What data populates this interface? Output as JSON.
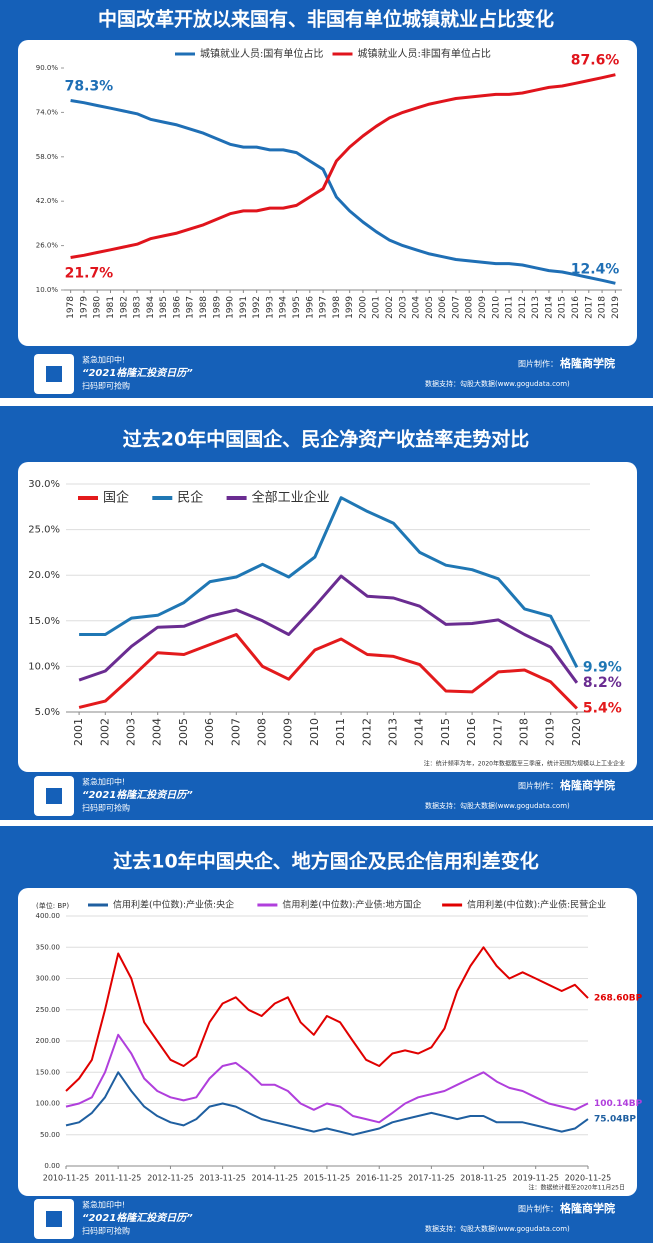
{
  "chart_data": [
    {
      "type": "line",
      "title": "中国改革开放以来国有、非国有单位城镇就业占比变化",
      "categories": [
        "1978",
        "1979",
        "1980",
        "1981",
        "1982",
        "1983",
        "1984",
        "1985",
        "1986",
        "1987",
        "1988",
        "1989",
        "1990",
        "1991",
        "1992",
        "1993",
        "1994",
        "1995",
        "1996",
        "1997",
        "1998",
        "1999",
        "2000",
        "2001",
        "2002",
        "2003",
        "2004",
        "2005",
        "2006",
        "2007",
        "2008",
        "2009",
        "2010",
        "2011",
        "2012",
        "2013",
        "2014",
        "2015",
        "2016",
        "2017",
        "2018",
        "2019"
      ],
      "series": [
        {
          "name": "城镇就业人员:国有单位占比",
          "color": "#1f6fb5",
          "values": [
            78.3,
            77.5,
            76.5,
            75.5,
            74.5,
            73.5,
            71.5,
            70.5,
            69.5,
            68,
            66.5,
            64.5,
            62.5,
            61.5,
            61.5,
            60.5,
            60.5,
            59.5,
            56.5,
            53.5,
            43.5,
            38.5,
            34.5,
            31,
            28,
            26,
            24.5,
            23,
            22,
            21,
            20.5,
            20,
            19.5,
            19.5,
            19,
            18,
            17,
            16.5,
            15.5,
            14.5,
            13.5,
            12.4
          ],
          "value_labels": [
            "78.3%",
            null,
            null,
            null,
            null,
            null,
            null,
            null,
            null,
            null,
            null,
            null,
            null,
            null,
            null,
            null,
            null,
            null,
            null,
            null,
            null,
            null,
            null,
            null,
            null,
            null,
            null,
            null,
            null,
            null,
            null,
            null,
            null,
            null,
            null,
            null,
            null,
            null,
            null,
            null,
            null,
            "12.4%"
          ]
        },
        {
          "name": "城镇就业人员:非国有单位占比",
          "color": "#e0141c",
          "values": [
            21.7,
            22.5,
            23.5,
            24.5,
            25.5,
            26.5,
            28.5,
            29.5,
            30.5,
            32,
            33.5,
            35.5,
            37.5,
            38.5,
            38.5,
            39.5,
            39.5,
            40.5,
            43.5,
            46.5,
            56.5,
            61.5,
            65.5,
            69,
            72,
            74,
            75.5,
            77,
            78,
            79,
            79.5,
            80,
            80.5,
            80.5,
            81,
            82,
            83,
            83.5,
            84.5,
            85.5,
            86.5,
            87.6
          ],
          "value_labels": [
            "21.7%",
            null,
            null,
            null,
            null,
            null,
            null,
            null,
            null,
            null,
            null,
            null,
            null,
            null,
            null,
            null,
            null,
            null,
            null,
            null,
            null,
            null,
            null,
            null,
            null,
            null,
            null,
            null,
            null,
            null,
            null,
            null,
            null,
            null,
            null,
            null,
            null,
            null,
            null,
            null,
            null,
            "87.6%"
          ]
        }
      ],
      "ylim": [
        10,
        90
      ],
      "yticks": [
        {
          "value": 10,
          "label": "10.0%"
        },
        {
          "value": 26,
          "label": "26.0%"
        },
        {
          "value": 42,
          "label": "42.0%"
        },
        {
          "value": 58,
          "label": "58.0%"
        },
        {
          "value": 74,
          "label": "74.0%"
        },
        {
          "value": 90,
          "label": "90.0%"
        }
      ],
      "grid": false
    },
    {
      "type": "line",
      "title": "过去20年中国国企、民企净资产收益率走势对比",
      "categories": [
        "2001",
        "2002",
        "2003",
        "2004",
        "2005",
        "2006",
        "2007",
        "2008",
        "2009",
        "2010",
        "2011",
        "2012",
        "2013",
        "2014",
        "2015",
        "2016",
        "2017",
        "2018",
        "2019",
        "2020"
      ],
      "series": [
        {
          "name": "国企",
          "color": "#e31a1c",
          "values": [
            5.5,
            6.2,
            8.8,
            11.5,
            11.3,
            12.4,
            13.5,
            10.0,
            8.6,
            11.8,
            13.0,
            11.3,
            11.1,
            10.2,
            7.3,
            7.2,
            9.4,
            9.6,
            8.3,
            5.4
          ],
          "value_labels": [
            null,
            null,
            null,
            null,
            null,
            null,
            null,
            null,
            null,
            null,
            null,
            null,
            null,
            null,
            null,
            null,
            null,
            null,
            null,
            "5.4%"
          ]
        },
        {
          "name": "民企",
          "color": "#1f77b4",
          "values": [
            13.5,
            13.5,
            15.3,
            15.6,
            17.0,
            19.3,
            19.8,
            21.2,
            19.8,
            22.0,
            28.5,
            27.0,
            25.7,
            22.5,
            21.1,
            20.6,
            19.6,
            16.3,
            15.5,
            9.9
          ],
          "value_labels": [
            null,
            null,
            null,
            null,
            null,
            null,
            null,
            null,
            null,
            null,
            null,
            null,
            null,
            null,
            null,
            null,
            null,
            null,
            null,
            "9.9%"
          ]
        },
        {
          "name": "全部工业企业",
          "color": "#6a2c91",
          "values": [
            8.5,
            9.5,
            12.2,
            14.3,
            14.4,
            15.5,
            16.2,
            15.0,
            13.5,
            16.6,
            19.9,
            17.7,
            17.5,
            16.6,
            14.6,
            14.7,
            15.1,
            13.5,
            12.1,
            8.2
          ],
          "value_labels": [
            null,
            null,
            null,
            null,
            null,
            null,
            null,
            null,
            null,
            null,
            null,
            null,
            null,
            null,
            null,
            null,
            null,
            null,
            null,
            "8.2%"
          ]
        }
      ],
      "ylim": [
        5,
        30
      ],
      "yticks": [
        {
          "value": 5,
          "label": "5.0%"
        },
        {
          "value": 10,
          "label": "10.0%"
        },
        {
          "value": 15,
          "label": "15.0%"
        },
        {
          "value": 20,
          "label": "20.0%"
        },
        {
          "value": 25,
          "label": "25.0%"
        },
        {
          "value": 30,
          "label": "30.0%"
        }
      ],
      "grid": true,
      "note": "注：统计频率为年，2020年数据截至三季度，统计范围为规模以上工业企业"
    },
    {
      "type": "line",
      "title": "过去10年中国央企、地方国企及民企信用利差变化",
      "y_label": "(单位: BP)",
      "x": [
        "2010-11-25",
        "2011-02-25",
        "2011-05-25",
        "2011-08-25",
        "2011-11-25",
        "2012-02-25",
        "2012-05-25",
        "2012-08-25",
        "2012-11-25",
        "2013-02-25",
        "2013-05-25",
        "2013-08-25",
        "2013-11-25",
        "2014-02-25",
        "2014-05-25",
        "2014-08-25",
        "2014-11-25",
        "2015-02-25",
        "2015-05-25",
        "2015-08-25",
        "2015-11-25",
        "2016-02-25",
        "2016-05-25",
        "2016-08-25",
        "2016-11-25",
        "2017-02-25",
        "2017-05-25",
        "2017-08-25",
        "2017-11-25",
        "2018-02-25",
        "2018-05-25",
        "2018-08-25",
        "2018-11-25",
        "2019-02-25",
        "2019-05-25",
        "2019-08-25",
        "2019-11-25",
        "2020-02-25",
        "2020-05-25",
        "2020-08-25",
        "2020-11-25"
      ],
      "series": [
        {
          "name": "信用利差(中位数):产业债:央企",
          "color": "#1f5fa0",
          "values": [
            65,
            70,
            85,
            110,
            150,
            120,
            95,
            80,
            70,
            65,
            75,
            95,
            100,
            95,
            85,
            75,
            70,
            65,
            60,
            55,
            60,
            55,
            50,
            55,
            60,
            70,
            75,
            80,
            85,
            80,
            75,
            80,
            80,
            70,
            70,
            70,
            65,
            60,
            55,
            60,
            75.04
          ],
          "value_labels": [
            null,
            null,
            null,
            null,
            null,
            null,
            null,
            null,
            null,
            null,
            null,
            null,
            null,
            null,
            null,
            null,
            null,
            null,
            null,
            null,
            null,
            null,
            null,
            null,
            null,
            null,
            null,
            null,
            null,
            null,
            null,
            null,
            null,
            null,
            null,
            null,
            null,
            null,
            null,
            null,
            "75.04BP"
          ]
        },
        {
          "name": "信用利差(中位数):产业债:地方国企",
          "color": "#b03fdc",
          "values": [
            95,
            100,
            110,
            150,
            210,
            180,
            140,
            120,
            110,
            105,
            110,
            140,
            160,
            165,
            150,
            130,
            130,
            120,
            100,
            90,
            100,
            95,
            80,
            75,
            70,
            85,
            100,
            110,
            115,
            120,
            130,
            140,
            150,
            135,
            125,
            120,
            110,
            100,
            95,
            90,
            100.14
          ],
          "value_labels": [
            null,
            null,
            null,
            null,
            null,
            null,
            null,
            null,
            null,
            null,
            null,
            null,
            null,
            null,
            null,
            null,
            null,
            null,
            null,
            null,
            null,
            null,
            null,
            null,
            null,
            null,
            null,
            null,
            null,
            null,
            null,
            null,
            null,
            null,
            null,
            null,
            null,
            null,
            null,
            null,
            "100.14BP"
          ]
        },
        {
          "name": "信用利差(中位数):产业债:民营企业",
          "color": "#e00000",
          "values": [
            120,
            140,
            170,
            250,
            340,
            300,
            230,
            200,
            170,
            160,
            175,
            230,
            260,
            270,
            250,
            240,
            260,
            270,
            230,
            210,
            240,
            230,
            200,
            170,
            160,
            180,
            185,
            180,
            190,
            220,
            280,
            320,
            350,
            320,
            300,
            310,
            300,
            290,
            280,
            290,
            268.6
          ],
          "value_labels": [
            null,
            null,
            null,
            null,
            null,
            null,
            null,
            null,
            null,
            null,
            null,
            null,
            null,
            null,
            null,
            null,
            null,
            null,
            null,
            null,
            null,
            null,
            null,
            null,
            null,
            null,
            null,
            null,
            null,
            null,
            null,
            null,
            null,
            null,
            null,
            null,
            null,
            null,
            null,
            null,
            "268.60BP"
          ]
        }
      ],
      "xlim": [
        "2010-11-25",
        "2020-11-25"
      ],
      "xticks": [
        "2010-11-25",
        "2011-11-25",
        "2012-11-25",
        "2013-11-25",
        "2014-11-25",
        "2015-11-25",
        "2016-11-25",
        "2017-11-25",
        "2018-11-25",
        "2019-11-25",
        "2020-11-25"
      ],
      "ylim": [
        0,
        400
      ],
      "yticks": [
        {
          "value": 0,
          "label": "0.00"
        },
        {
          "value": 50,
          "label": "50.00"
        },
        {
          "value": 100,
          "label": "100.00"
        },
        {
          "value": 150,
          "label": "150.00"
        },
        {
          "value": 200,
          "label": "200.00"
        },
        {
          "value": 250,
          "label": "250.00"
        },
        {
          "value": 300,
          "label": "300.00"
        },
        {
          "value": 350,
          "label": "350.00"
        },
        {
          "value": 400,
          "label": "400.00"
        }
      ],
      "grid": true,
      "note": "注：数据统计截至2020年11月25日"
    }
  ],
  "footer": {
    "line1": "紧急加印中!",
    "line2": "“2021格隆汇投资日历”",
    "line3": "扫码即可抢购",
    "maker_label": "图片制作：",
    "maker": "格隆商学院",
    "source": "数据支持：勾股大数据(www.gogudata.com)"
  }
}
